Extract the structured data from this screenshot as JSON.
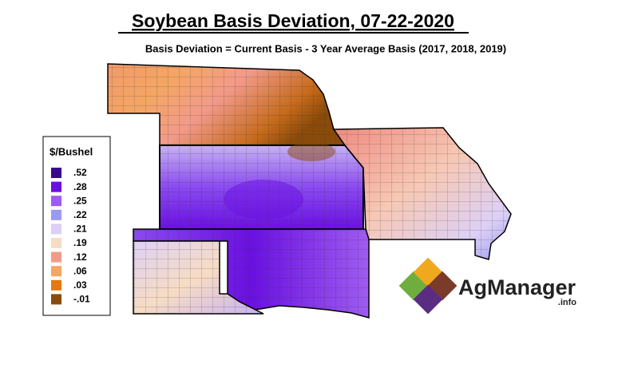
{
  "header": {
    "title": "Soybean Basis Deviation, 07-22-2020",
    "subtitle": "Basis Deviation = Current Basis - 3 Year Average Basis (2017, 2018, 2019)"
  },
  "legend": {
    "title": "$/Bushel",
    "items": [
      {
        "label": ".52",
        "color": "#3a0a8c"
      },
      {
        "label": ".28",
        "color": "#6a10e0"
      },
      {
        "label": ".25",
        "color": "#9f5cf0"
      },
      {
        "label": ".22",
        "color": "#9a9af2"
      },
      {
        "label": ".21",
        "color": "#ddd0f6"
      },
      {
        "label": ".19",
        "color": "#f7dcc4"
      },
      {
        "label": ".12",
        "color": "#f29a8a"
      },
      {
        "label": ".06",
        "color": "#f4a664"
      },
      {
        "label": ".03",
        "color": "#e5780e"
      },
      {
        "label": "-.01",
        "color": "#8a4a0a"
      }
    ]
  },
  "logo": {
    "name": "AgManager",
    "suffix": ".info"
  }
}
